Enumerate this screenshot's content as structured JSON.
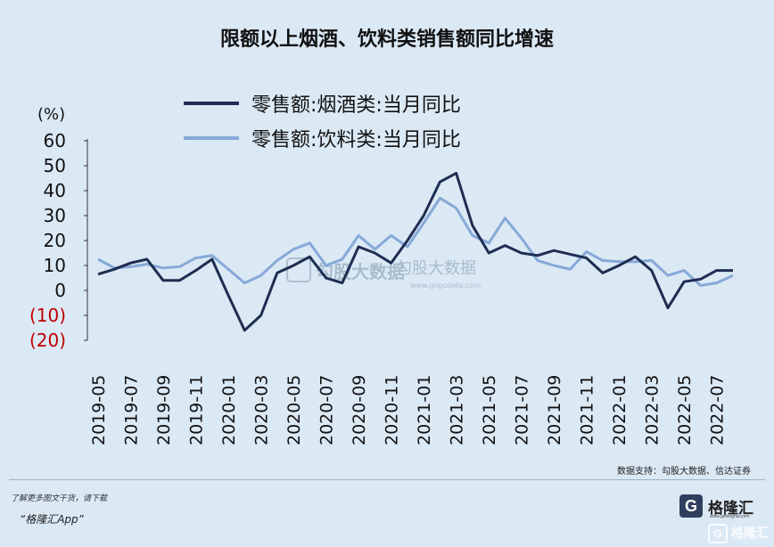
{
  "title": "限额以上烟酒、饮料类销售额同比增速",
  "y_unit": "(%)",
  "source": "数据支持：勾股大数据、信达证券",
  "watermark_cn": "勾股大数据",
  "watermark_url": "www.gogudata.com",
  "footer_note": "了解更多图文干货，请下载",
  "footer_app": "“格隆汇App”",
  "brand_logo": "G",
  "brand_name": "格隆汇",
  "brand_url": "www.gelonghui.com",
  "corner_watermark": "格隆汇",
  "colors": {
    "series1": "#1f2d52",
    "series2": "#86a9d8",
    "negative_tick": "#c00000"
  },
  "chart_data": {
    "type": "line",
    "x": [
      "2019-05",
      "2019-06",
      "2019-07",
      "2019-08",
      "2019-09",
      "2019-10",
      "2019-11",
      "2019-12",
      "2020-01",
      "2020-02",
      "2020-03",
      "2020-04",
      "2020-05",
      "2020-06",
      "2020-07",
      "2020-08",
      "2020-09",
      "2020-10",
      "2020-11",
      "2020-12",
      "2021-01",
      "2021-02",
      "2021-03",
      "2021-04",
      "2021-05",
      "2021-06",
      "2021-07",
      "2021-08",
      "2021-09",
      "2021-10",
      "2021-11",
      "2021-12",
      "2022-01",
      "2022-02",
      "2022-03",
      "2022-04",
      "2022-05",
      "2022-06",
      "2022-07",
      "2022-08"
    ],
    "x_tick_labels": [
      "2019-05",
      "2019-07",
      "2019-09",
      "2019-11",
      "2020-01",
      "2020-03",
      "2020-05",
      "2020-07",
      "2020-09",
      "2020-11",
      "2021-01",
      "2021-03",
      "2021-05",
      "2021-07",
      "2021-09",
      "2021-11",
      "2022-01",
      "2022-03",
      "2022-05",
      "2022-07"
    ],
    "y_ticks": [
      "60",
      "50",
      "40",
      "30",
      "20",
      "10",
      "0",
      "(10)",
      "(20)"
    ],
    "ylim": [
      -20,
      60
    ],
    "series": [
      {
        "name": "零售额:烟酒类:当月同比",
        "values": [
          6.5,
          8.5,
          11,
          12.5,
          4,
          4,
          8,
          12.5,
          -2,
          -16,
          -10,
          7,
          10,
          13.5,
          5,
          3,
          17.5,
          15,
          11,
          20,
          30,
          43.5,
          47,
          26,
          15,
          18,
          15,
          14,
          16,
          14.5,
          13,
          7,
          10,
          13.5,
          8,
          -7,
          3.5,
          4.5,
          8,
          8
        ]
      },
      {
        "name": "零售额:饮料类:当月同比",
        "values": [
          12.5,
          9,
          9.5,
          10.5,
          9,
          9.5,
          13,
          14,
          8.5,
          3,
          6,
          12,
          16.5,
          19,
          10,
          12.5,
          22,
          16.5,
          22,
          17.5,
          27,
          37,
          33,
          22,
          19,
          29,
          21,
          12,
          10,
          8.5,
          15.5,
          12,
          11.5,
          11.5,
          12,
          6,
          8,
          2,
          3,
          6
        ]
      }
    ]
  }
}
